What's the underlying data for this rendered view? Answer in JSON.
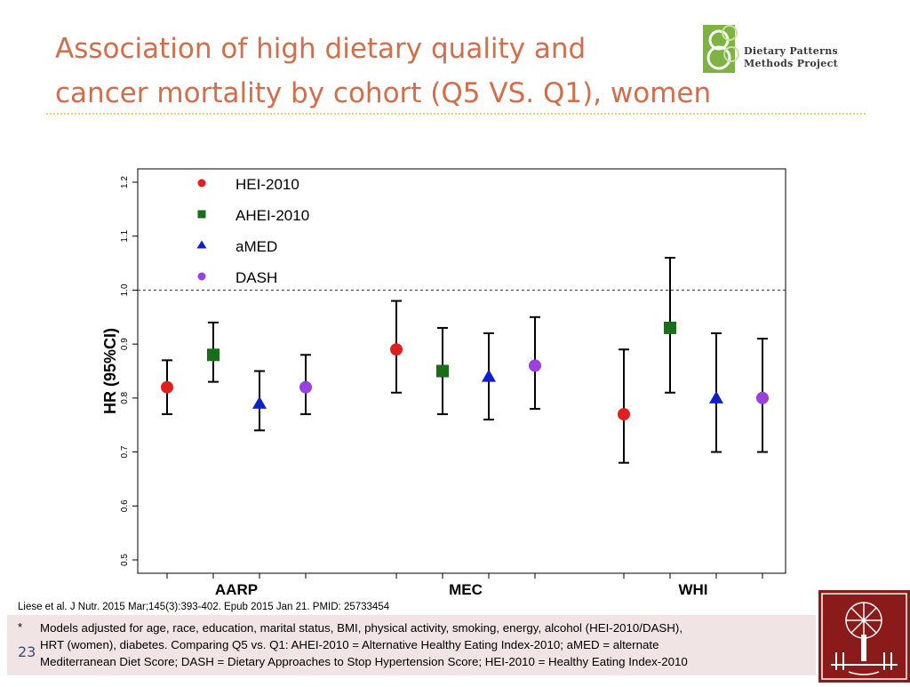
{
  "slide": {
    "title_lines": [
      "Association of high dietary quality and",
      "cancer mortality by cohort (Q5 VS. Q1), women"
    ],
    "slide_number": "23"
  },
  "logo": {
    "line1": "Dietary Patterns",
    "line2": "Methods Project"
  },
  "citation": "Liese et al. J Nutr. 2015 Mar;145(3):393-402. Epub 2015 Jan 21. PMID:  25733454",
  "footnote": {
    "marker": "*",
    "lines": [
      "Models adjusted for age, race, education, marital status, BMI, physical activity, smoking, energy, alcohol (HEI-2010/DASH),",
      "HRT (women), diabetes. Comparing Q5 vs. Q1: AHEI-2010 = Alternative Healthy Eating Index-2010; aMED = alternate",
      "Mediterranean Diet Score; DASH = Dietary Approaches to Stop Hypertension Score; HEI-2010 = Healthy Eating Index-2010"
    ]
  },
  "chart_data": {
    "type": "scatter",
    "subtype": "forest-plot",
    "title": "",
    "xlabel": "",
    "ylabel": "HR (95%CI)",
    "ylim": [
      0.5,
      1.2
    ],
    "yticks": [
      "0.5",
      "0.6",
      "0.7",
      "0.8",
      "0.9",
      "1.0",
      "1.1",
      "1.2"
    ],
    "reference_line": 1.0,
    "categories": [
      "AARP",
      "MEC",
      "WHI"
    ],
    "legend_position": "top-left",
    "series": [
      {
        "name": "HEI-2010",
        "marker": "circle",
        "color": "#e01e1e",
        "points": [
          {
            "hr": 0.82,
            "low": 0.77,
            "high": 0.87
          },
          {
            "hr": 0.89,
            "low": 0.81,
            "high": 0.98
          },
          {
            "hr": 0.77,
            "low": 0.68,
            "high": 0.89
          }
        ]
      },
      {
        "name": "AHEI-2010",
        "marker": "square",
        "color": "#1a6e1a",
        "points": [
          {
            "hr": 0.88,
            "low": 0.83,
            "high": 0.94
          },
          {
            "hr": 0.85,
            "low": 0.77,
            "high": 0.93
          },
          {
            "hr": 0.93,
            "low": 0.81,
            "high": 1.06
          }
        ]
      },
      {
        "name": "aMED",
        "marker": "triangle",
        "color": "#1020c8",
        "points": [
          {
            "hr": 0.79,
            "low": 0.74,
            "high": 0.85
          },
          {
            "hr": 0.84,
            "low": 0.76,
            "high": 0.92
          },
          {
            "hr": 0.8,
            "low": 0.7,
            "high": 0.92
          }
        ]
      },
      {
        "name": "DASH",
        "marker": "circle",
        "color": "#9b3fe0",
        "points": [
          {
            "hr": 0.82,
            "low": 0.77,
            "high": 0.88
          },
          {
            "hr": 0.86,
            "low": 0.78,
            "high": 0.95
          },
          {
            "hr": 0.8,
            "low": 0.7,
            "high": 0.91
          }
        ]
      }
    ]
  }
}
